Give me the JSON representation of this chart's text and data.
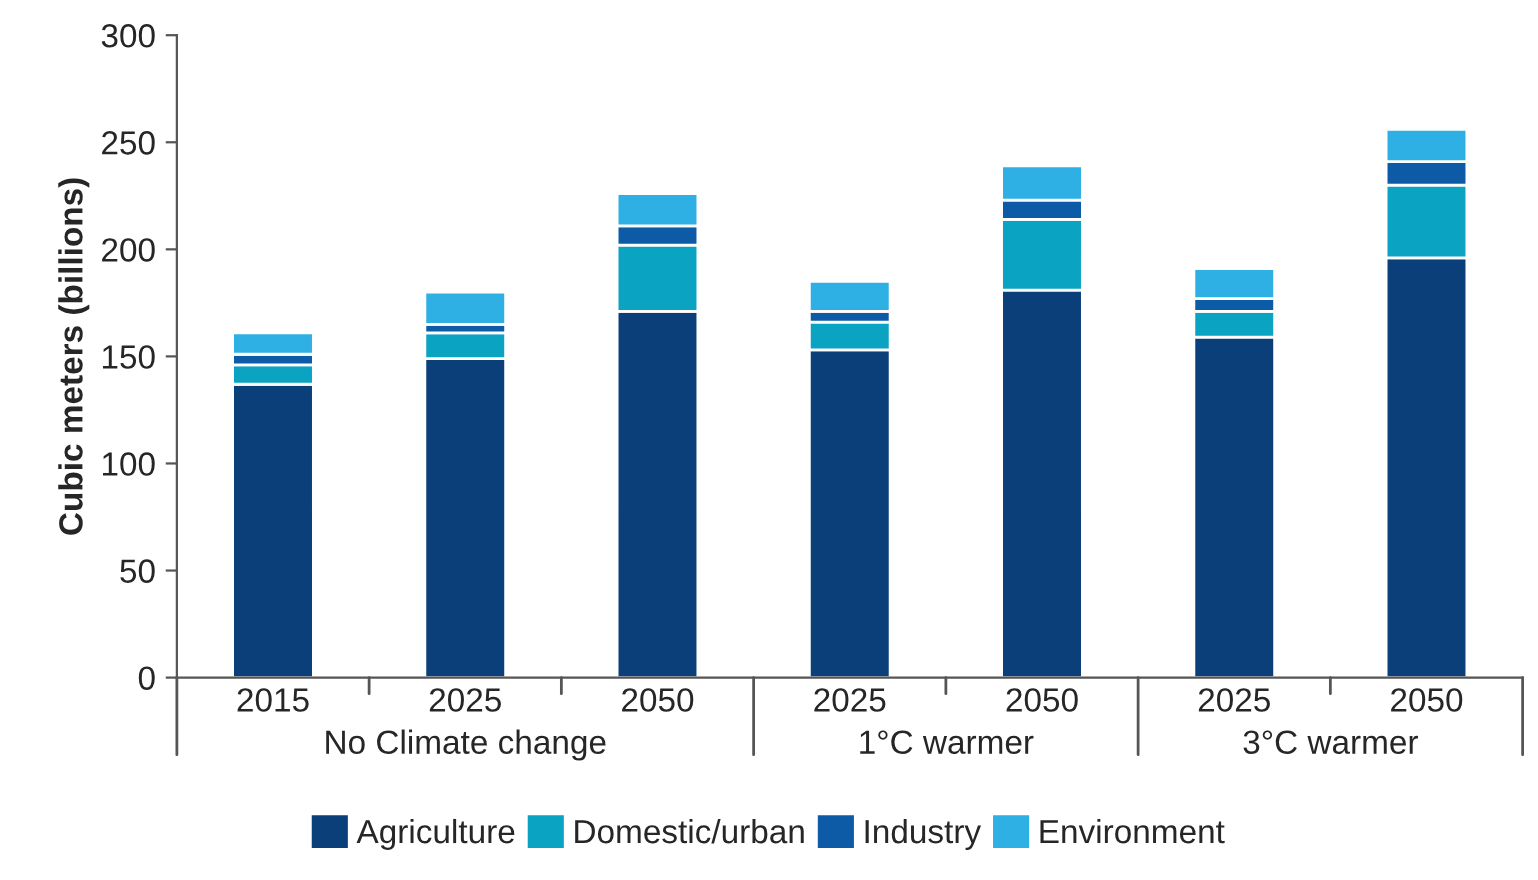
{
  "chart_data": {
    "type": "bar",
    "stacked": true,
    "ylabel": "Cubic meters (billions)",
    "categories": [
      "2015",
      "2025",
      "2050",
      "2025",
      "2050",
      "2025",
      "2050"
    ],
    "series": [
      {
        "name": "Agriculture",
        "color": "#0b3f7a",
        "values": [
          137,
          149,
          171,
          153,
          181,
          159,
          196
        ]
      },
      {
        "name": "Domestic/urban",
        "color": "#0aa3c2",
        "values": [
          9,
          12,
          31,
          13,
          33,
          12,
          34
        ]
      },
      {
        "name": "Industry",
        "color": "#0d5ba6",
        "values": [
          5,
          4,
          9,
          5,
          9,
          6,
          11
        ]
      },
      {
        "name": "Environment",
        "color": "#2eb0e4",
        "values": [
          10,
          15,
          15,
          14,
          16,
          14,
          15
        ]
      }
    ],
    "annotations": [
      "No Climate change",
      "1°C warmer",
      "3°C warmer"
    ],
    "ylim": [
      0,
      300
    ],
    "yticks": [
      0,
      50,
      100,
      150,
      200,
      250,
      300
    ],
    "grid": false,
    "legend": "bottom"
  }
}
